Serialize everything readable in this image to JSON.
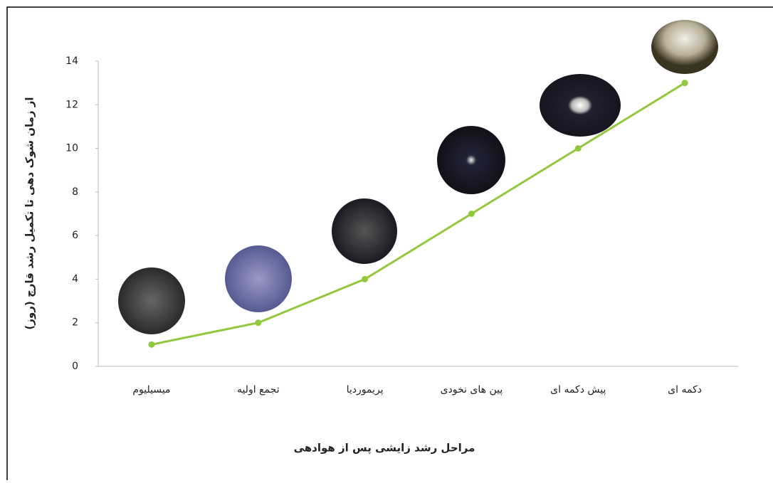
{
  "chart_data": {
    "type": "line",
    "y_label": "از زمان شوک دهی تا تکمیل رشد قارچ (روز)",
    "x_label": "مراحل رشد زایشی پس از هوادهی",
    "categories": [
      "میسیلیوم",
      "تجمع اولیه",
      "پریموردیا",
      "پین های نخودی",
      "پیش دکمه ای",
      "دکمه ای"
    ],
    "series": [
      {
        "color": "#92c83e",
        "values": [
          1,
          2,
          4,
          7,
          10,
          13
        ]
      }
    ],
    "ylim": [
      0,
      14
    ],
    "yticks": [
      0,
      2,
      4,
      6,
      8,
      10,
      12,
      14
    ]
  }
}
